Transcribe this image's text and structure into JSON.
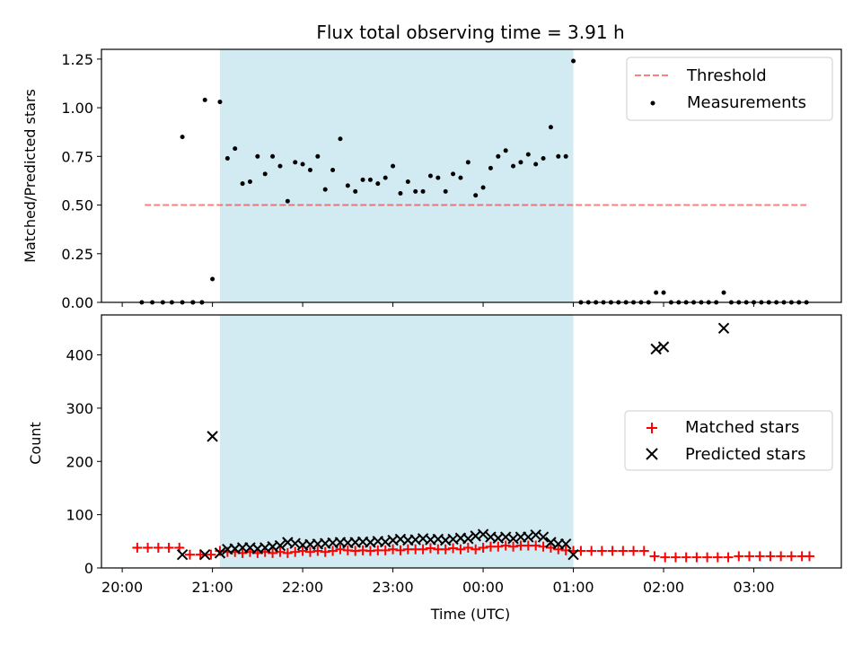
{
  "title": "Flux total observing time = 3.91 h",
  "colors": {
    "shade": "#add8e6",
    "threshold": "#ff0000",
    "measurement": "#000000",
    "matched": "#ff0000",
    "predicted": "#000000"
  },
  "chart_data": [
    {
      "type": "scatter",
      "ylabel": "Matched/Predicted stars",
      "ylim": [
        0,
        1.3
      ],
      "yticks": [
        "0.00",
        "0.25",
        "0.50",
        "0.75",
        "1.00",
        "1.25"
      ],
      "xlim": [
        19.77,
        27.97
      ],
      "xticks": [
        "20:00",
        "21:00",
        "22:00",
        "23:00",
        "00:00",
        "01:00",
        "02:00",
        "03:00"
      ],
      "shaded_interval": [
        "21:05",
        "01:00"
      ],
      "legend_position": "top-right",
      "threshold": {
        "name": "Threshold",
        "value": 0.5,
        "x_range": [
          "20:15",
          "03:35"
        ]
      },
      "series": [
        {
          "name": "Measurements",
          "points": [
            [
              "20:13",
              0.0
            ],
            [
              "20:20",
              0.0
            ],
            [
              "20:27",
              0.0
            ],
            [
              "20:33",
              0.0
            ],
            [
              "20:40",
              0.0
            ],
            [
              "20:47",
              0.0
            ],
            [
              "20:53",
              0.0
            ],
            [
              "20:40",
              0.85
            ],
            [
              "20:47",
              0.0
            ],
            [
              "20:53",
              0.0
            ],
            [
              "20:55",
              1.04
            ],
            [
              "21:00",
              0.12
            ],
            [
              "21:05",
              1.03
            ],
            [
              "21:10",
              0.74
            ],
            [
              "21:15",
              0.79
            ],
            [
              "21:20",
              0.61
            ],
            [
              "21:25",
              0.62
            ],
            [
              "21:30",
              0.75
            ],
            [
              "21:35",
              0.66
            ],
            [
              "21:40",
              0.75
            ],
            [
              "21:45",
              0.7
            ],
            [
              "21:50",
              0.52
            ],
            [
              "21:55",
              0.72
            ],
            [
              "22:00",
              0.71
            ],
            [
              "22:05",
              0.68
            ],
            [
              "22:10",
              0.75
            ],
            [
              "22:15",
              0.58
            ],
            [
              "22:20",
              0.68
            ],
            [
              "22:25",
              0.84
            ],
            [
              "22:30",
              0.6
            ],
            [
              "22:35",
              0.57
            ],
            [
              "22:40",
              0.63
            ],
            [
              "22:45",
              0.63
            ],
            [
              "22:50",
              0.61
            ],
            [
              "22:55",
              0.64
            ],
            [
              "23:00",
              0.7
            ],
            [
              "23:05",
              0.56
            ],
            [
              "23:10",
              0.62
            ],
            [
              "23:15",
              0.57
            ],
            [
              "23:20",
              0.57
            ],
            [
              "23:25",
              0.65
            ],
            [
              "23:30",
              0.64
            ],
            [
              "23:35",
              0.57
            ],
            [
              "23:40",
              0.66
            ],
            [
              "23:45",
              0.64
            ],
            [
              "23:50",
              0.72
            ],
            [
              "23:55",
              0.55
            ],
            [
              "00:00",
              0.59
            ],
            [
              "00:05",
              0.69
            ],
            [
              "00:10",
              0.75
            ],
            [
              "00:15",
              0.78
            ],
            [
              "00:20",
              0.7
            ],
            [
              "00:25",
              0.72
            ],
            [
              "00:30",
              0.76
            ],
            [
              "00:35",
              0.71
            ],
            [
              "00:40",
              0.74
            ],
            [
              "00:45",
              0.9
            ],
            [
              "00:50",
              0.75
            ],
            [
              "00:55",
              0.75
            ],
            [
              "01:00",
              1.24
            ],
            [
              "01:05",
              0.0
            ],
            [
              "01:10",
              0.0
            ],
            [
              "01:15",
              0.0
            ],
            [
              "01:20",
              0.0
            ],
            [
              "01:25",
              0.0
            ],
            [
              "01:30",
              0.0
            ],
            [
              "01:35",
              0.0
            ],
            [
              "01:40",
              0.0
            ],
            [
              "01:45",
              0.0
            ],
            [
              "01:50",
              0.0
            ],
            [
              "01:55",
              0.05
            ],
            [
              "02:00",
              0.05
            ],
            [
              "02:05",
              0.0
            ],
            [
              "02:10",
              0.0
            ],
            [
              "02:15",
              0.0
            ],
            [
              "02:20",
              0.0
            ],
            [
              "02:25",
              0.0
            ],
            [
              "02:30",
              0.0
            ],
            [
              "02:35",
              0.0
            ],
            [
              "02:40",
              0.05
            ],
            [
              "02:45",
              0.0
            ],
            [
              "02:50",
              0.0
            ],
            [
              "02:55",
              0.0
            ],
            [
              "03:00",
              0.0
            ],
            [
              "03:05",
              0.0
            ],
            [
              "03:10",
              0.0
            ],
            [
              "03:15",
              0.0
            ],
            [
              "03:20",
              0.0
            ],
            [
              "03:25",
              0.0
            ],
            [
              "03:30",
              0.0
            ],
            [
              "03:35",
              0.0
            ]
          ]
        }
      ]
    },
    {
      "type": "scatter",
      "ylabel": "Count",
      "xlabel": "Time (UTC)",
      "ylim": [
        0,
        475
      ],
      "yticks": [
        "0",
        "100",
        "200",
        "300",
        "400"
      ],
      "xlim": [
        19.77,
        27.97
      ],
      "xticks": [
        "20:00",
        "21:00",
        "22:00",
        "23:00",
        "00:00",
        "01:00",
        "02:00",
        "03:00"
      ],
      "shaded_interval": [
        "21:05",
        "01:00"
      ],
      "legend_position": "center-right",
      "series": [
        {
          "name": "Matched stars",
          "marker": "plus",
          "points": [
            [
              "20:10",
              38
            ],
            [
              "20:17",
              38
            ],
            [
              "20:24",
              38
            ],
            [
              "20:31",
              38
            ],
            [
              "20:38",
              38
            ],
            [
              "20:45",
              25
            ],
            [
              "20:52",
              25
            ],
            [
              "20:59",
              25
            ],
            [
              "21:05",
              32
            ],
            [
              "21:10",
              30
            ],
            [
              "21:15",
              30
            ],
            [
              "21:20",
              28
            ],
            [
              "21:25",
              30
            ],
            [
              "21:30",
              28
            ],
            [
              "21:35",
              30
            ],
            [
              "21:40",
              28
            ],
            [
              "21:45",
              30
            ],
            [
              "21:50",
              28
            ],
            [
              "21:55",
              30
            ],
            [
              "22:00",
              32
            ],
            [
              "22:05",
              30
            ],
            [
              "22:10",
              32
            ],
            [
              "22:15",
              30
            ],
            [
              "22:20",
              32
            ],
            [
              "22:25",
              35
            ],
            [
              "22:30",
              33
            ],
            [
              "22:35",
              32
            ],
            [
              "22:40",
              33
            ],
            [
              "22:45",
              32
            ],
            [
              "22:50",
              33
            ],
            [
              "22:55",
              33
            ],
            [
              "23:00",
              35
            ],
            [
              "23:05",
              33
            ],
            [
              "23:10",
              35
            ],
            [
              "23:15",
              35
            ],
            [
              "23:20",
              35
            ],
            [
              "23:25",
              37
            ],
            [
              "23:30",
              35
            ],
            [
              "23:35",
              35
            ],
            [
              "23:40",
              37
            ],
            [
              "23:45",
              35
            ],
            [
              "23:50",
              38
            ],
            [
              "23:55",
              35
            ],
            [
              "00:00",
              38
            ],
            [
              "00:05",
              40
            ],
            [
              "00:10",
              40
            ],
            [
              "00:15",
              42
            ],
            [
              "00:20",
              40
            ],
            [
              "00:25",
              42
            ],
            [
              "00:30",
              42
            ],
            [
              "00:35",
              42
            ],
            [
              "00:40",
              40
            ],
            [
              "00:45",
              38
            ],
            [
              "00:50",
              35
            ],
            [
              "00:55",
              33
            ],
            [
              "01:00",
              32
            ],
            [
              "01:05",
              32
            ],
            [
              "01:12",
              32
            ],
            [
              "01:19",
              32
            ],
            [
              "01:26",
              32
            ],
            [
              "01:33",
              32
            ],
            [
              "01:40",
              32
            ],
            [
              "01:47",
              32
            ],
            [
              "01:54",
              22
            ],
            [
              "02:01",
              20
            ],
            [
              "02:08",
              20
            ],
            [
              "02:15",
              20
            ],
            [
              "02:22",
              20
            ],
            [
              "02:29",
              20
            ],
            [
              "02:36",
              20
            ],
            [
              "02:43",
              20
            ],
            [
              "02:50",
              22
            ],
            [
              "02:57",
              22
            ],
            [
              "03:04",
              22
            ],
            [
              "03:11",
              22
            ],
            [
              "03:18",
              22
            ],
            [
              "03:25",
              22
            ],
            [
              "03:32",
              22
            ],
            [
              "03:37",
              22
            ]
          ]
        },
        {
          "name": "Predicted stars",
          "marker": "x",
          "points": [
            [
              "20:40",
              25
            ],
            [
              "20:55",
              25
            ],
            [
              "21:00",
              247
            ],
            [
              "21:05",
              28
            ],
            [
              "21:10",
              35
            ],
            [
              "21:15",
              36
            ],
            [
              "21:20",
              38
            ],
            [
              "21:25",
              38
            ],
            [
              "21:30",
              36
            ],
            [
              "21:35",
              38
            ],
            [
              "21:40",
              40
            ],
            [
              "21:45",
              42
            ],
            [
              "21:50",
              48
            ],
            [
              "21:55",
              46
            ],
            [
              "22:00",
              43
            ],
            [
              "22:05",
              44
            ],
            [
              "22:10",
              45
            ],
            [
              "22:15",
              46
            ],
            [
              "22:20",
              47
            ],
            [
              "22:25",
              48
            ],
            [
              "22:30",
              47
            ],
            [
              "22:35",
              48
            ],
            [
              "22:40",
              49
            ],
            [
              "22:45",
              48
            ],
            [
              "22:50",
              50
            ],
            [
              "22:55",
              49
            ],
            [
              "23:00",
              52
            ],
            [
              "23:05",
              54
            ],
            [
              "23:10",
              52
            ],
            [
              "23:15",
              53
            ],
            [
              "23:20",
              55
            ],
            [
              "23:25",
              53
            ],
            [
              "23:30",
              54
            ],
            [
              "23:35",
              52
            ],
            [
              "23:40",
              54
            ],
            [
              "23:45",
              56
            ],
            [
              "23:50",
              55
            ],
            [
              "23:55",
              60
            ],
            [
              "00:00",
              63
            ],
            [
              "00:05",
              58
            ],
            [
              "00:10",
              56
            ],
            [
              "00:15",
              58
            ],
            [
              "00:20",
              55
            ],
            [
              "00:25",
              58
            ],
            [
              "00:30",
              58
            ],
            [
              "00:35",
              62
            ],
            [
              "00:40",
              58
            ],
            [
              "00:45",
              48
            ],
            [
              "00:50",
              45
            ],
            [
              "00:55",
              45
            ],
            [
              "01:00",
              25
            ],
            [
              "01:55",
              411
            ],
            [
              "02:00",
              415
            ],
            [
              "02:40",
              450
            ]
          ]
        }
      ]
    }
  ]
}
